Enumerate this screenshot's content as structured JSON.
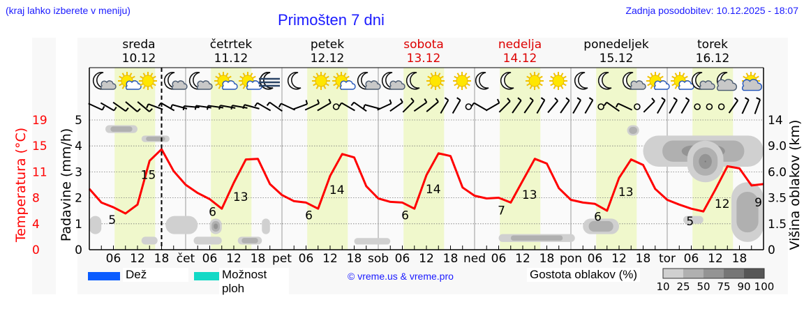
{
  "header": {
    "hint": "(kraj lahko izberete v meniju)",
    "title": "Primošten 7 dni",
    "updated": "Zadnja posodobitev: 10.12.2025 - 18:07"
  },
  "days": [
    {
      "name": "sreda",
      "date": "10.12",
      "weekend": false,
      "abbr": ""
    },
    {
      "name": "četrtek",
      "date": "11.12",
      "weekend": false,
      "abbr": "čet"
    },
    {
      "name": "petek",
      "date": "12.12",
      "weekend": false,
      "abbr": "pet"
    },
    {
      "name": "sobota",
      "date": "13.12",
      "weekend": true,
      "abbr": "sob"
    },
    {
      "name": "nedelja",
      "date": "14.12",
      "weekend": true,
      "abbr": "ned"
    },
    {
      "name": "ponedeljek",
      "date": "15.12",
      "weekend": false,
      "abbr": "pon"
    },
    {
      "name": "torek",
      "date": "16.12",
      "weekend": false,
      "abbr": "tor"
    }
  ],
  "hour_ticks": [
    "06",
    "12",
    "18"
  ],
  "now_marker_hour": 18,
  "weather_icons": [
    "moon-cloud-icon",
    "sun-cloud-icon",
    "sun-icon",
    "moon-cloud-icon",
    "moon-cloud-icon",
    "sun-cloud-icon",
    "sun-cloud-icon",
    "moon-fog-icon",
    "moon-icon",
    "sun-icon",
    "sun-cloud-icon",
    "moon-cloud-icon",
    "moon-cloud-icon",
    "moon-icon",
    "sun-icon",
    "sun-icon",
    "moon-icon",
    "moon-icon",
    "sun-icon",
    "sun-icon",
    "moon-icon",
    "moon-icon",
    "moon-cloud-icon",
    "sun-cloud-icon",
    "sun-cloud-icon",
    "moon-cloud-icon",
    "moon-heavy-cloud-icon",
    "sun-heavy-cloud-icon",
    "sun-heavy-cloud-icon",
    "moon-heavy-cloud-icon"
  ],
  "axes": {
    "left_temp_label": "Temperatura (°C)",
    "left_temp_ticks": [
      "19",
      "15",
      "11",
      "8",
      "4",
      "0"
    ],
    "left_precip_label": "Padavine (mm/h)",
    "left_precip_ticks": [
      "5",
      "4",
      "3",
      "2",
      "1",
      "0"
    ],
    "right_label": "Višina oblakov (km)",
    "right_ticks": [
      "14",
      "9.0",
      "6.0",
      "3.5",
      "1.5",
      "0"
    ]
  },
  "legend": {
    "rain_label": "Dež",
    "rain_color": "#0a5cff",
    "storm_label": "Možnost ploh",
    "storm_color": "#12d9c6",
    "copyright": "© vreme.us & vreme.pro",
    "cloud_density_label": "Gostota oblakov (%)",
    "cloud_density_ticks": [
      "10",
      "25",
      "50",
      "75",
      "90",
      "100"
    ],
    "cloud_density_colors": [
      "#d0d0d0",
      "#b0b0b0",
      "#949494",
      "#767676",
      "#565656"
    ]
  },
  "colors": {
    "temperature_line": "#ff0000",
    "daylight_band": "#f0f8cc",
    "plot_bg": "#fafafa",
    "weekend_text": "#dd0000",
    "link_text": "#1a1aff"
  },
  "chart_data": {
    "type": "line",
    "title": "Primošten 7 dni",
    "xlabel": "",
    "x_unit": "hours from Wed 10.12 00:00",
    "x_range": [
      0,
      168
    ],
    "series": [
      {
        "name": "Temperatura (°C)",
        "axis": "left_temp",
        "color": "#ff0000",
        "x": [
          0,
          3,
          6,
          9,
          12,
          15,
          18,
          21,
          24,
          27,
          30,
          33,
          36,
          39,
          42,
          45,
          48,
          51,
          54,
          57,
          60,
          63,
          66,
          69,
          72,
          75,
          78,
          81,
          84,
          87,
          90,
          93,
          96,
          99,
          102,
          105,
          108,
          111,
          114,
          117,
          120,
          123,
          126,
          129,
          132,
          135,
          138,
          141,
          144,
          147,
          150,
          153,
          156,
          159,
          162,
          165,
          168
        ],
        "values": [
          8.9,
          6.9,
          6.2,
          5.3,
          6.6,
          13.0,
          14.7,
          11.5,
          9.5,
          8.3,
          7.4,
          6.0,
          9.8,
          13.2,
          13.3,
          9.6,
          8.0,
          7.1,
          6.9,
          6.0,
          10.8,
          14.0,
          13.5,
          9.3,
          7.5,
          7.0,
          6.9,
          6.0,
          10.9,
          14.1,
          13.7,
          9.1,
          7.9,
          7.5,
          7.6,
          6.9,
          10.1,
          13.3,
          12.6,
          9.0,
          7.3,
          6.9,
          6.7,
          5.7,
          10.5,
          13.2,
          12.4,
          8.9,
          7.3,
          6.6,
          6.0,
          5.6,
          8.8,
          12.2,
          11.9,
          9.4,
          9.6
        ]
      },
      {
        "name": "Padavine (mm/h)",
        "axis": "left_precip",
        "color": "#0a5cff",
        "values": "none visible (0 mm/h)"
      }
    ],
    "labels": [
      {
        "x": 5,
        "text": "5",
        "kind": "min"
      },
      {
        "x": 14,
        "text": "15",
        "kind": "max"
      },
      {
        "x": 30,
        "text": "6",
        "kind": "min"
      },
      {
        "x": 37,
        "text": "13",
        "kind": "max"
      },
      {
        "x": 54,
        "text": "6",
        "kind": "min"
      },
      {
        "x": 61,
        "text": "14",
        "kind": "max"
      },
      {
        "x": 78,
        "text": "6",
        "kind": "min"
      },
      {
        "x": 85,
        "text": "14",
        "kind": "max"
      },
      {
        "x": 102,
        "text": "7",
        "kind": "min"
      },
      {
        "x": 109,
        "text": "13",
        "kind": "max"
      },
      {
        "x": 126,
        "text": "6",
        "kind": "min"
      },
      {
        "x": 133,
        "text": "13",
        "kind": "max"
      },
      {
        "x": 149,
        "text": "5",
        "kind": "min"
      },
      {
        "x": 157,
        "text": "12",
        "kind": "max"
      },
      {
        "x": 166,
        "text": "9",
        "kind": "last"
      }
    ],
    "cloud_blobs": [
      {
        "x0": 4,
        "x1": 12,
        "y0": 4.5,
        "y1": 4.8,
        "d": 2
      },
      {
        "x0": 13,
        "x1": 20,
        "y0": 4.15,
        "y1": 4.4,
        "d": 2
      },
      {
        "x0": 0,
        "x1": 3,
        "y0": 0.6,
        "y1": 1.3,
        "d": 1
      },
      {
        "x0": 13,
        "x1": 17,
        "y0": 0.2,
        "y1": 0.5,
        "d": 1
      },
      {
        "x0": 19,
        "x1": 27,
        "y0": 0.6,
        "y1": 1.3,
        "d": 1
      },
      {
        "x0": 26,
        "x1": 33,
        "y0": 0.2,
        "y1": 0.5,
        "d": 1
      },
      {
        "x0": 30,
        "x1": 33,
        "y0": 0.6,
        "y1": 1.2,
        "d": 3
      },
      {
        "x0": 37,
        "x1": 43,
        "y0": 0.2,
        "y1": 0.5,
        "d": 2
      },
      {
        "x0": 43,
        "x1": 45,
        "y0": 0.6,
        "y1": 1.2,
        "d": 1
      },
      {
        "x0": 66,
        "x1": 75,
        "y0": 0.2,
        "y1": 0.45,
        "d": 1
      },
      {
        "x0": 102,
        "x1": 121,
        "y0": 0.3,
        "y1": 0.6,
        "d": 2
      },
      {
        "x0": 123,
        "x1": 132,
        "y0": 0.6,
        "y1": 1.2,
        "d": 2
      },
      {
        "x0": 134,
        "x1": 137,
        "y0": 4.4,
        "y1": 4.8,
        "d": 2
      },
      {
        "x0": 138,
        "x1": 168,
        "y0": 3.2,
        "y1": 4.4,
        "d": 4
      },
      {
        "x0": 149,
        "x1": 158,
        "y0": 2.6,
        "y1": 4.2,
        "d": 5
      },
      {
        "x0": 160,
        "x1": 168,
        "y0": 0.3,
        "y1": 2.6,
        "d": 2
      },
      {
        "x0": 148,
        "x1": 153,
        "y0": 1.0,
        "y1": 1.3,
        "d": 1
      }
    ],
    "y_left_precip": {
      "label": "Padavine (mm/h)",
      "range": [
        0,
        5
      ],
      "ticks": [
        0,
        1,
        2,
        3,
        4,
        5
      ]
    },
    "y_left_temp": {
      "label": "Temperatura (°C)",
      "range": [
        0,
        19
      ],
      "ticks": [
        0,
        4,
        8,
        11,
        15,
        19
      ]
    },
    "y_right": {
      "label": "Višina oblakov (km)",
      "ticks": [
        "0",
        "1.5",
        "3.5",
        "6.0",
        "9.0",
        "14"
      ]
    },
    "grid": true,
    "daylight_bands_hours": [
      [
        7,
        16.5
      ]
    ],
    "legend_position": "bottom"
  }
}
